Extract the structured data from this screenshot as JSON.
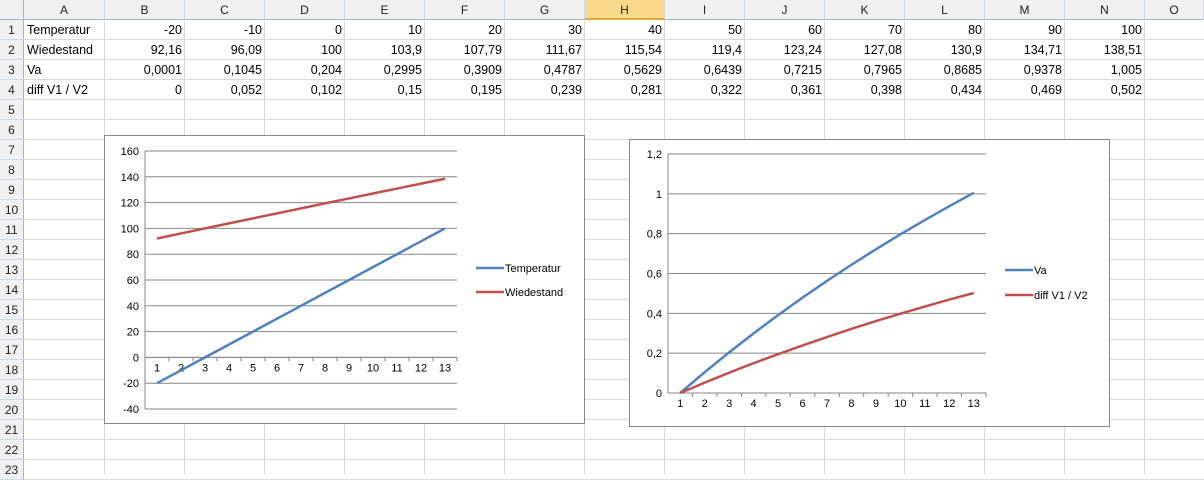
{
  "sheet": {
    "columns": [
      "A",
      "B",
      "C",
      "D",
      "E",
      "F",
      "G",
      "H",
      "I",
      "J",
      "K",
      "L",
      "M",
      "N",
      "O"
    ],
    "selected_column": "H",
    "row_numbers": [
      "1",
      "2",
      "3",
      "4",
      "5",
      "6",
      "7",
      "8",
      "9",
      "10",
      "11",
      "12",
      "13",
      "14",
      "15",
      "16",
      "17",
      "18",
      "19",
      "20",
      "21",
      "22",
      "23"
    ],
    "rows": [
      [
        "Temperatur",
        "-20",
        "-10",
        "0",
        "10",
        "20",
        "30",
        "40",
        "50",
        "60",
        "70",
        "80",
        "90",
        "100"
      ],
      [
        "Wiedestand",
        "92,16",
        "96,09",
        "100",
        "103,9",
        "107,79",
        "111,67",
        "115,54",
        "119,4",
        "123,24",
        "127,08",
        "130,9",
        "134,71",
        "138,51"
      ],
      [
        "Va",
        "0,0001",
        "0,1045",
        "0,204",
        "0,2995",
        "0,3909",
        "0,4787",
        "0,5629",
        "0,6439",
        "0,7215",
        "0,7965",
        "0,8685",
        "0,9378",
        "1,005"
      ],
      [
        "diff V1 / V2",
        "0",
        "0,052",
        "0,102",
        "0,15",
        "0,195",
        "0,239",
        "0,281",
        "0,322",
        "0,361",
        "0,398",
        "0,434",
        "0,469",
        "0,502"
      ]
    ]
  },
  "chart_data": [
    {
      "type": "line",
      "x": [
        "1",
        "2",
        "3",
        "4",
        "5",
        "6",
        "7",
        "8",
        "9",
        "10",
        "11",
        "12",
        "13"
      ],
      "series": [
        {
          "name": "Temperatur",
          "color": "#4f81bd",
          "values": [
            -20,
            -10,
            0,
            10,
            20,
            30,
            40,
            50,
            60,
            70,
            80,
            90,
            100
          ]
        },
        {
          "name": "Wiedestand",
          "color": "#c0504d",
          "values": [
            92.16,
            96.09,
            100,
            103.9,
            107.79,
            111.67,
            115.54,
            119.4,
            123.24,
            127.08,
            130.9,
            134.71,
            138.51
          ]
        }
      ],
      "ylim": [
        -40,
        160
      ],
      "yticks": [
        "160",
        "140",
        "120",
        "100",
        "80",
        "60",
        "40",
        "20",
        "0",
        "-20",
        "-40"
      ],
      "grid": true,
      "legend": "right"
    },
    {
      "type": "line",
      "x": [
        "1",
        "2",
        "3",
        "4",
        "5",
        "6",
        "7",
        "8",
        "9",
        "10",
        "11",
        "12",
        "13"
      ],
      "series": [
        {
          "name": "Va",
          "color": "#4f81bd",
          "values": [
            0.0001,
            0.1045,
            0.204,
            0.2995,
            0.3909,
            0.4787,
            0.5629,
            0.6439,
            0.7215,
            0.7965,
            0.8685,
            0.9378,
            1.005
          ]
        },
        {
          "name": "diff V1 / V2",
          "color": "#c0504d",
          "values": [
            0,
            0.052,
            0.102,
            0.15,
            0.195,
            0.239,
            0.281,
            0.322,
            0.361,
            0.398,
            0.434,
            0.469,
            0.502
          ]
        }
      ],
      "ylim": [
        0,
        1.2
      ],
      "yticks": [
        "1,2",
        "1",
        "0,8",
        "0,6",
        "0,4",
        "0,2",
        "0"
      ],
      "grid": true,
      "legend": "right"
    }
  ]
}
